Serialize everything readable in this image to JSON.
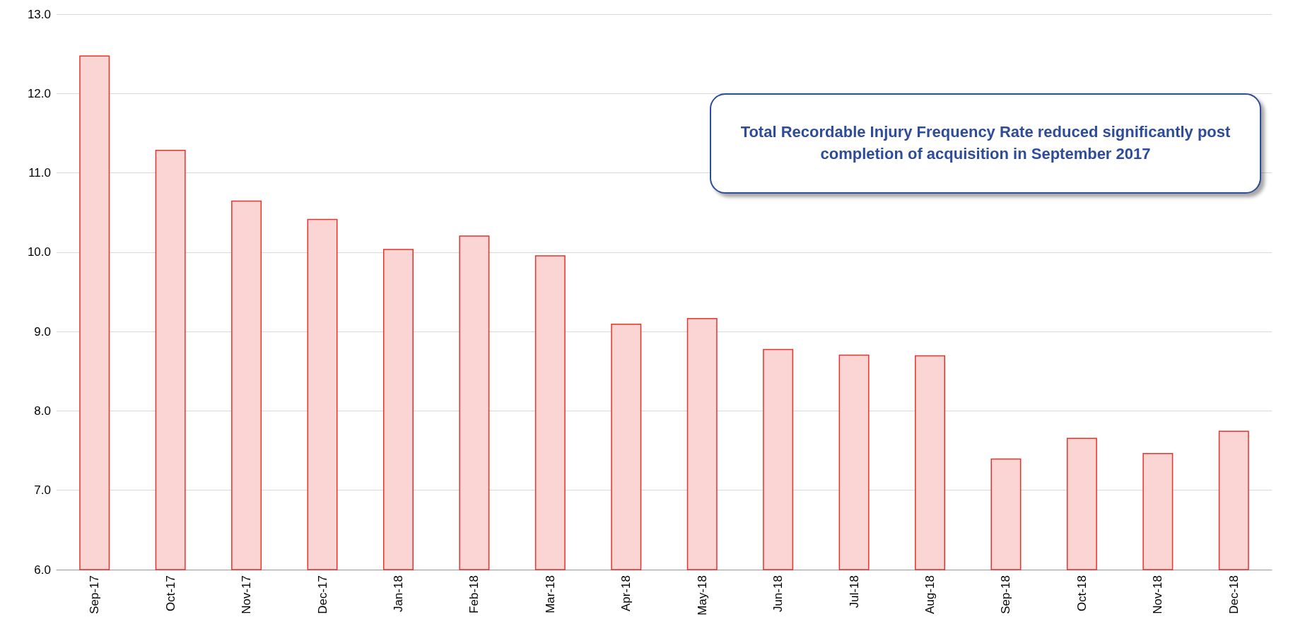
{
  "chart_data": {
    "type": "bar",
    "categories": [
      "Sep-17",
      "Oct-17",
      "Nov-17",
      "Dec-17",
      "Jan-18",
      "Feb-18",
      "Mar-18",
      "Apr-18",
      "May-18",
      "Jun-18",
      "Jul-18",
      "Aug-18",
      "Sep-18",
      "Oct-18",
      "Nov-18",
      "Dec-18"
    ],
    "values": [
      12.48,
      11.29,
      10.65,
      10.42,
      10.04,
      10.21,
      9.96,
      9.1,
      9.17,
      8.78,
      8.71,
      8.7,
      7.4,
      7.66,
      7.47,
      7.75
    ],
    "color": "#fbd5d3",
    "ylim": [
      6,
      13
    ],
    "yticks": [
      {
        "value": 6,
        "label": "6.0"
      },
      {
        "value": 7,
        "label": "7.0"
      },
      {
        "value": 8,
        "label": "8.0"
      },
      {
        "value": 9,
        "label": "9.0"
      },
      {
        "value": 10,
        "label": "10.0"
      },
      {
        "value": 11,
        "label": "11.0"
      },
      {
        "value": 12,
        "label": "12.0"
      },
      {
        "value": 13,
        "label": "13.0"
      }
    ],
    "grid": "y",
    "annotations": [
      "Total Recordable Injury Frequency Rate reduced significantly post completion of acquisition in September 2017"
    ]
  }
}
